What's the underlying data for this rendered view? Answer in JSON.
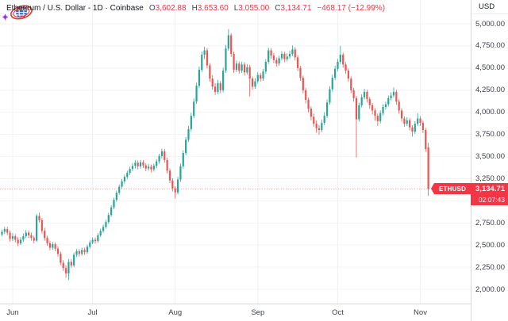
{
  "header": {
    "title": "Ethereum / U.S. Dollar - 1D · Coinbase",
    "ohlc": {
      "open_label": "O",
      "open": "3,602.88",
      "high_label": "H",
      "high": "3,653.60",
      "low_label": "L",
      "low": "3,055.00",
      "close_label": "C",
      "close": "3,134.71"
    },
    "change": "−468.17 (−12.99%)"
  },
  "price_axis": {
    "unit": "USD",
    "labels": [
      "5,000.00",
      "4,750.00",
      "4,500.00",
      "4,250.00",
      "4,000.00",
      "3,750.00",
      "3,500.00",
      "3,250.00",
      "3,000.00",
      "2,750.00",
      "2,500.00",
      "2,250.00",
      "2,000.00"
    ],
    "ticks": [
      5000,
      4750,
      4500,
      4250,
      4000,
      3750,
      3500,
      3250,
      3000,
      2750,
      2500,
      2250,
      2000
    ]
  },
  "price_label": {
    "symbol": "ETHUSD",
    "price": "3,134.71",
    "countdown": "02:07:43"
  },
  "watermark": {
    "icon": "globe-orbit-logo",
    "sparkle": "sparkle-icon"
  },
  "colors": {
    "up": "#26a69a",
    "down": "#ef5350",
    "flag_bg": "#f23645",
    "text_red": "#f23645",
    "axis_text": "#3c4049",
    "grid_h": "#f3f3f8",
    "grid_v": "#f0f0f6",
    "separator": "#d6d8de",
    "price_line": "#f23645"
  },
  "chart_data": {
    "type": "candlestick",
    "title": "Ethereum / U.S. Dollar",
    "interval": "1D",
    "exchange": "Coinbase",
    "unit": "USD",
    "last": {
      "open": 3602.88,
      "high": 3653.6,
      "low": 3055.0,
      "close": 3134.71,
      "change": -468.17,
      "change_pct": -12.99
    },
    "countdown": "02:07:43",
    "y_axis": {
      "min": 2000,
      "max": 5000,
      "tick_step": 250
    },
    "x_axis": {
      "months": [
        "Jun",
        "Jul",
        "Aug",
        "Sep",
        "Oct",
        "Nov"
      ],
      "month_indices": [
        4,
        34,
        65,
        96,
        126,
        157
      ]
    },
    "price_line": 3134.71,
    "grid": true,
    "candles": [
      [
        2620,
        2675,
        2600,
        2650
      ],
      [
        2650,
        2705,
        2625,
        2680
      ],
      [
        2680,
        2705,
        2610,
        2640
      ],
      [
        2640,
        2665,
        2540,
        2570
      ],
      [
        2570,
        2635,
        2545,
        2600
      ],
      [
        2600,
        2625,
        2530,
        2560
      ],
      [
        2560,
        2590,
        2490,
        2520
      ],
      [
        2520,
        2590,
        2500,
        2560
      ],
      [
        2560,
        2630,
        2535,
        2600
      ],
      [
        2600,
        2670,
        2580,
        2640
      ],
      [
        2640,
        2665,
        2580,
        2610
      ],
      [
        2610,
        2640,
        2550,
        2580
      ],
      [
        2580,
        2605,
        2520,
        2550
      ],
      [
        2550,
        2850,
        2535,
        2830
      ],
      [
        2830,
        2865,
        2755,
        2780
      ],
      [
        2780,
        2805,
        2630,
        2660
      ],
      [
        2660,
        2695,
        2550,
        2580
      ],
      [
        2580,
        2605,
        2490,
        2520
      ],
      [
        2520,
        2550,
        2440,
        2470
      ],
      [
        2470,
        2535,
        2445,
        2510
      ],
      [
        2510,
        2530,
        2430,
        2460
      ],
      [
        2460,
        2485,
        2370,
        2400
      ],
      [
        2400,
        2425,
        2270,
        2300
      ],
      [
        2300,
        2330,
        2205,
        2240
      ],
      [
        2240,
        2270,
        2130,
        2180
      ],
      [
        2180,
        2340,
        2105,
        2310
      ],
      [
        2310,
        2340,
        2240,
        2270
      ],
      [
        2270,
        2415,
        2250,
        2390
      ],
      [
        2390,
        2455,
        2365,
        2430
      ],
      [
        2430,
        2455,
        2370,
        2400
      ],
      [
        2400,
        2470,
        2380,
        2445
      ],
      [
        2445,
        2470,
        2390,
        2420
      ],
      [
        2420,
        2505,
        2400,
        2480
      ],
      [
        2480,
        2555,
        2460,
        2530
      ],
      [
        2530,
        2585,
        2510,
        2560
      ],
      [
        2560,
        2585,
        2515,
        2545
      ],
      [
        2545,
        2635,
        2525,
        2610
      ],
      [
        2610,
        2685,
        2590,
        2660
      ],
      [
        2660,
        2730,
        2640,
        2705
      ],
      [
        2705,
        2785,
        2685,
        2760
      ],
      [
        2760,
        2865,
        2740,
        2840
      ],
      [
        2840,
        2950,
        2820,
        2925
      ],
      [
        2925,
        3035,
        2905,
        3010
      ],
      [
        3010,
        3115,
        2990,
        3090
      ],
      [
        3090,
        3185,
        3070,
        3160
      ],
      [
        3160,
        3245,
        3140,
        3220
      ],
      [
        3220,
        3295,
        3195,
        3270
      ],
      [
        3270,
        3340,
        3245,
        3315
      ],
      [
        3315,
        3385,
        3290,
        3360
      ],
      [
        3360,
        3425,
        3335,
        3395
      ],
      [
        3395,
        3460,
        3365,
        3430
      ],
      [
        3430,
        3455,
        3355,
        3390
      ],
      [
        3390,
        3460,
        3365,
        3435
      ],
      [
        3435,
        3460,
        3370,
        3400
      ],
      [
        3400,
        3425,
        3335,
        3365
      ],
      [
        3365,
        3415,
        3340,
        3385
      ],
      [
        3385,
        3410,
        3325,
        3355
      ],
      [
        3355,
        3420,
        3330,
        3395
      ],
      [
        3395,
        3470,
        3370,
        3445
      ],
      [
        3445,
        3530,
        3420,
        3505
      ],
      [
        3505,
        3590,
        3480,
        3560
      ],
      [
        3560,
        3585,
        3430,
        3460
      ],
      [
        3460,
        3485,
        3310,
        3340
      ],
      [
        3340,
        3365,
        3200,
        3230
      ],
      [
        3230,
        3255,
        3105,
        3140
      ],
      [
        3140,
        3165,
        3025,
        3095
      ],
      [
        3095,
        3270,
        3070,
        3240
      ],
      [
        3240,
        3420,
        3215,
        3390
      ],
      [
        3390,
        3570,
        3365,
        3540
      ],
      [
        3540,
        3720,
        3515,
        3690
      ],
      [
        3690,
        3845,
        3665,
        3810
      ],
      [
        3810,
        3995,
        3785,
        3960
      ],
      [
        3960,
        4155,
        3935,
        4120
      ],
      [
        4120,
        4335,
        4095,
        4300
      ],
      [
        4300,
        4515,
        4275,
        4480
      ],
      [
        4480,
        4685,
        4455,
        4650
      ],
      [
        4650,
        4740,
        4600,
        4700
      ],
      [
        4700,
        4725,
        4495,
        4530
      ],
      [
        4530,
        4555,
        4345,
        4380
      ],
      [
        4380,
        4420,
        4255,
        4290
      ],
      [
        4290,
        4330,
        4195,
        4230
      ],
      [
        4230,
        4365,
        4205,
        4330
      ],
      [
        4330,
        4355,
        4215,
        4250
      ],
      [
        4250,
        4505,
        4225,
        4470
      ],
      [
        4470,
        4760,
        4445,
        4720
      ],
      [
        4720,
        4940,
        4695,
        4870
      ],
      [
        4870,
        4895,
        4625,
        4660
      ],
      [
        4660,
        4685,
        4445,
        4480
      ],
      [
        4480,
        4585,
        4455,
        4550
      ],
      [
        4550,
        4575,
        4435,
        4470
      ],
      [
        4470,
        4570,
        4445,
        4540
      ],
      [
        4540,
        4565,
        4415,
        4450
      ],
      [
        4450,
        4545,
        4425,
        4510
      ],
      [
        4510,
        4535,
        4180,
        4380
      ],
      [
        4380,
        4405,
        4255,
        4290
      ],
      [
        4290,
        4385,
        4265,
        4350
      ],
      [
        4350,
        4455,
        4325,
        4420
      ],
      [
        4420,
        4445,
        4345,
        4380
      ],
      [
        4380,
        4490,
        4355,
        4460
      ],
      [
        4460,
        4600,
        4435,
        4570
      ],
      [
        4570,
        4730,
        4545,
        4700
      ],
      [
        4700,
        4725,
        4605,
        4640
      ],
      [
        4640,
        4670,
        4555,
        4590
      ],
      [
        4590,
        4620,
        4515,
        4550
      ],
      [
        4550,
        4640,
        4525,
        4610
      ],
      [
        4610,
        4690,
        4585,
        4660
      ],
      [
        4660,
        4685,
        4565,
        4600
      ],
      [
        4600,
        4665,
        4575,
        4630
      ],
      [
        4630,
        4695,
        4605,
        4660
      ],
      [
        4660,
        4755,
        4635,
        4710
      ],
      [
        4710,
        4735,
        4585,
        4620
      ],
      [
        4620,
        4645,
        4465,
        4500
      ],
      [
        4500,
        4525,
        4355,
        4390
      ],
      [
        4390,
        4415,
        4215,
        4250
      ],
      [
        4250,
        4275,
        4100,
        4140
      ],
      [
        4140,
        4165,
        4000,
        4040
      ],
      [
        4040,
        4065,
        3910,
        3950
      ],
      [
        3950,
        3985,
        3835,
        3870
      ],
      [
        3870,
        3905,
        3770,
        3820
      ],
      [
        3820,
        3855,
        3745,
        3800
      ],
      [
        3800,
        3915,
        3775,
        3880
      ],
      [
        3880,
        4000,
        3855,
        3960
      ],
      [
        3960,
        4145,
        3935,
        4110
      ],
      [
        4110,
        4295,
        4085,
        4260
      ],
      [
        4260,
        4425,
        4235,
        4390
      ],
      [
        4390,
        4525,
        4365,
        4490
      ],
      [
        4490,
        4600,
        4465,
        4570
      ],
      [
        4570,
        4750,
        4545,
        4650
      ],
      [
        4650,
        4675,
        4505,
        4540
      ],
      [
        4540,
        4565,
        4435,
        4470
      ],
      [
        4470,
        4495,
        4345,
        4380
      ],
      [
        4380,
        4405,
        4215,
        4250
      ],
      [
        4250,
        4275,
        4120,
        4160
      ],
      [
        4160,
        4185,
        3490,
        3920
      ],
      [
        3920,
        4110,
        3895,
        4080
      ],
      [
        4080,
        4205,
        4055,
        4170
      ],
      [
        4170,
        4265,
        4145,
        4230
      ],
      [
        4230,
        4255,
        4115,
        4150
      ],
      [
        4150,
        4175,
        4040,
        4080
      ],
      [
        4080,
        4105,
        3975,
        4020
      ],
      [
        4020,
        4045,
        3905,
        3960
      ],
      [
        3960,
        3985,
        3845,
        3900
      ],
      [
        3900,
        4020,
        3875,
        3990
      ],
      [
        3990,
        4090,
        3965,
        4060
      ],
      [
        4060,
        4120,
        4030,
        4090
      ],
      [
        4090,
        4190,
        4065,
        4160
      ],
      [
        4160,
        4225,
        4135,
        4190
      ],
      [
        4190,
        4280,
        4165,
        4230
      ],
      [
        4230,
        4255,
        4085,
        4120
      ],
      [
        4120,
        4145,
        3985,
        4020
      ],
      [
        4020,
        4045,
        3895,
        3930
      ],
      [
        3930,
        3955,
        3835,
        3870
      ],
      [
        3870,
        3945,
        3845,
        3910
      ],
      [
        3910,
        3935,
        3795,
        3830
      ],
      [
        3830,
        3855,
        3725,
        3780
      ],
      [
        3780,
        3900,
        3755,
        3870
      ],
      [
        3870,
        3990,
        3845,
        3930
      ],
      [
        3930,
        3955,
        3845,
        3880
      ],
      [
        3880,
        3905,
        3765,
        3800
      ],
      [
        3800,
        3825,
        3555,
        3585
      ],
      [
        3602.88,
        3653.6,
        3055.0,
        3134.71
      ]
    ]
  }
}
